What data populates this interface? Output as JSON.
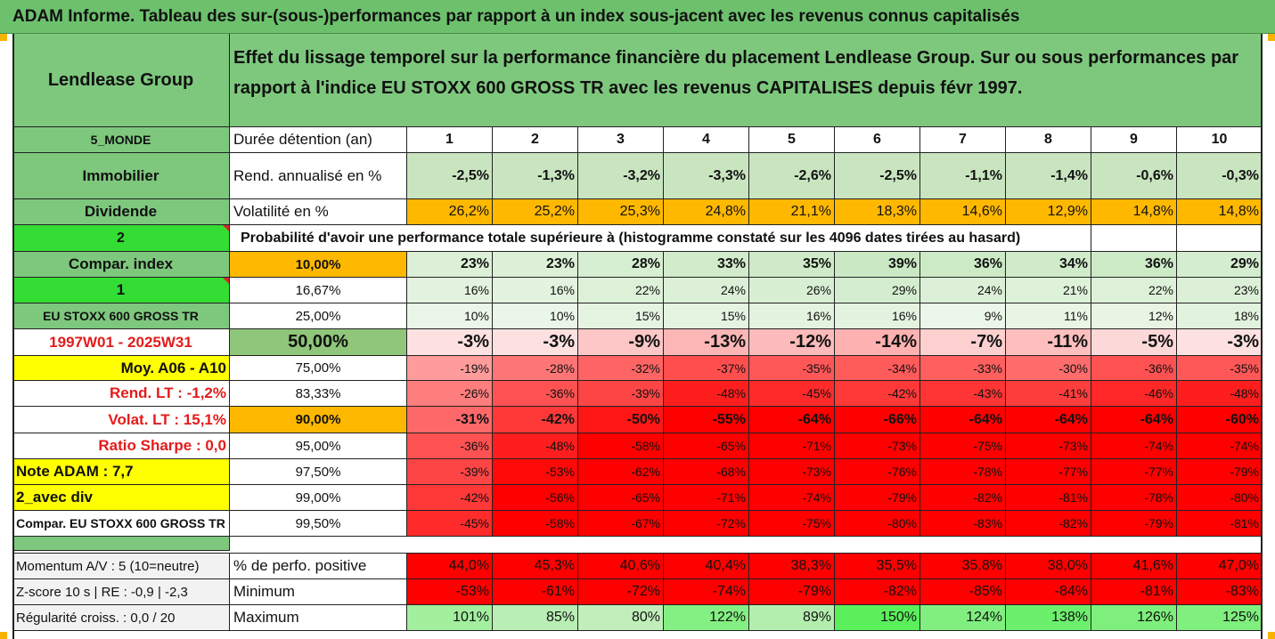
{
  "report_title": "ADAM Informe. Tableau des sur-(sous-)performances par rapport à un index sous-jacent avec les revenus connus capitalisés",
  "left_panel": {
    "asset_name": "Lendlease Group",
    "region": "5_MONDE",
    "sector": "Immobilier",
    "dividend_label": "Dividende",
    "selector_2": "2",
    "compare_label": "Compar. index",
    "selector_1": "1",
    "index_name": "EU STOXX 600 GROSS TR",
    "period": "1997W01 - 2025W31",
    "avg_label": "Moy. A06 - A10",
    "rend_lt": "Rend. LT :   -1,2%",
    "volat_lt": "Volat. LT :   15,1%",
    "sharpe": "Ratio Sharpe :   0,0",
    "note_adam": "Note ADAM : 7,7",
    "with_div": "2_avec div",
    "compare_full": "Compar. EU STOXX 600 GROSS TR",
    "momentum": "Momentum A/V : 5 (10=neutre)",
    "zscore": "Z-score 10 s  |  RE : -0,9  |  -2,3",
    "regularity": "Régularité croiss. : 0,0 / 20"
  },
  "header_description": "Effet du lissage temporel sur la performance financière du placement Lendlease Group. Sur ou sous performances par rapport à l'indice EU STOXX 600 GROSS TR avec les revenus CAPITALISES depuis févr 1997.",
  "holding_label": "Durée détention (an)",
  "years": [
    "1",
    "2",
    "3",
    "4",
    "5",
    "6",
    "7",
    "8",
    "9",
    "10"
  ],
  "annual_return": {
    "label": "Rend. annualisé en %",
    "values": [
      "-2,5%",
      "-1,3%",
      "-3,2%",
      "-3,3%",
      "-2,6%",
      "-2,5%",
      "-1,1%",
      "-1,4%",
      "-0,6%",
      "-0,3%"
    ]
  },
  "volatility": {
    "label": "Volatilité en %",
    "values": [
      "26,2%",
      "25,2%",
      "25,3%",
      "24,8%",
      "21,1%",
      "18,3%",
      "14,6%",
      "12,9%",
      "14,8%",
      "14,8%"
    ]
  },
  "probability_text": "Probabilité d'avoir une performance totale supérieure à (histogramme constaté sur les 4096 dates tirées au hasard)",
  "percentile_rows": [
    {
      "pct": "10,00%",
      "values": [
        "23%",
        "23%",
        "28%",
        "33%",
        "35%",
        "39%",
        "36%",
        "34%",
        "36%",
        "29%"
      ]
    },
    {
      "pct": "16,67%",
      "values": [
        "16%",
        "16%",
        "22%",
        "24%",
        "26%",
        "29%",
        "24%",
        "21%",
        "22%",
        "23%"
      ]
    },
    {
      "pct": "25,00%",
      "values": [
        "10%",
        "10%",
        "15%",
        "15%",
        "16%",
        "16%",
        "9%",
        "11%",
        "12%",
        "18%"
      ]
    },
    {
      "pct": "50,00%",
      "values": [
        "-3%",
        "-3%",
        "-9%",
        "-13%",
        "-12%",
        "-14%",
        "-7%",
        "-11%",
        "-5%",
        "-3%"
      ]
    },
    {
      "pct": "75,00%",
      "values": [
        "-19%",
        "-28%",
        "-32%",
        "-37%",
        "-35%",
        "-34%",
        "-33%",
        "-30%",
        "-36%",
        "-35%"
      ]
    },
    {
      "pct": "83,33%",
      "values": [
        "-26%",
        "-36%",
        "-39%",
        "-48%",
        "-45%",
        "-42%",
        "-43%",
        "-41%",
        "-46%",
        "-48%"
      ]
    },
    {
      "pct": "90,00%",
      "values": [
        "-31%",
        "-42%",
        "-50%",
        "-55%",
        "-64%",
        "-66%",
        "-64%",
        "-64%",
        "-64%",
        "-60%"
      ]
    },
    {
      "pct": "95,00%",
      "values": [
        "-36%",
        "-48%",
        "-58%",
        "-65%",
        "-71%",
        "-73%",
        "-75%",
        "-73%",
        "-74%",
        "-74%"
      ]
    },
    {
      "pct": "97,50%",
      "values": [
        "-39%",
        "-53%",
        "-62%",
        "-68%",
        "-73%",
        "-76%",
        "-78%",
        "-77%",
        "-77%",
        "-79%"
      ]
    },
    {
      "pct": "99,00%",
      "values": [
        "-42%",
        "-56%",
        "-65%",
        "-71%",
        "-74%",
        "-79%",
        "-82%",
        "-81%",
        "-78%",
        "-80%"
      ]
    },
    {
      "pct": "99,50%",
      "values": [
        "-45%",
        "-58%",
        "-67%",
        "-72%",
        "-75%",
        "-80%",
        "-83%",
        "-82%",
        "-79%",
        "-81%"
      ]
    }
  ],
  "positive_perf": {
    "label": "% de perfo. positive",
    "values": [
      "44,0%",
      "45,3%",
      "40,6%",
      "40,4%",
      "38,3%",
      "35,5%",
      "35,8%",
      "38,0%",
      "41,6%",
      "47,0%"
    ]
  },
  "minimum": {
    "label": "Minimum",
    "values": [
      "-53%",
      "-61%",
      "-72%",
      "-74%",
      "-79%",
      "-82%",
      "-85%",
      "-84%",
      "-81%",
      "-83%"
    ]
  },
  "maximum": {
    "label": "Maximum",
    "values": [
      "101%",
      "85%",
      "80%",
      "122%",
      "89%",
      "150%",
      "124%",
      "138%",
      "126%",
      "125%"
    ]
  },
  "colors": {
    "header_green": "#7ec87e",
    "title_green": "#6dc16d",
    "bright_green": "#33dd33",
    "orange": "#ffb800",
    "yellow": "#ffff00",
    "red_strong": "#ff0000",
    "green_light": "#c9e5c0"
  }
}
